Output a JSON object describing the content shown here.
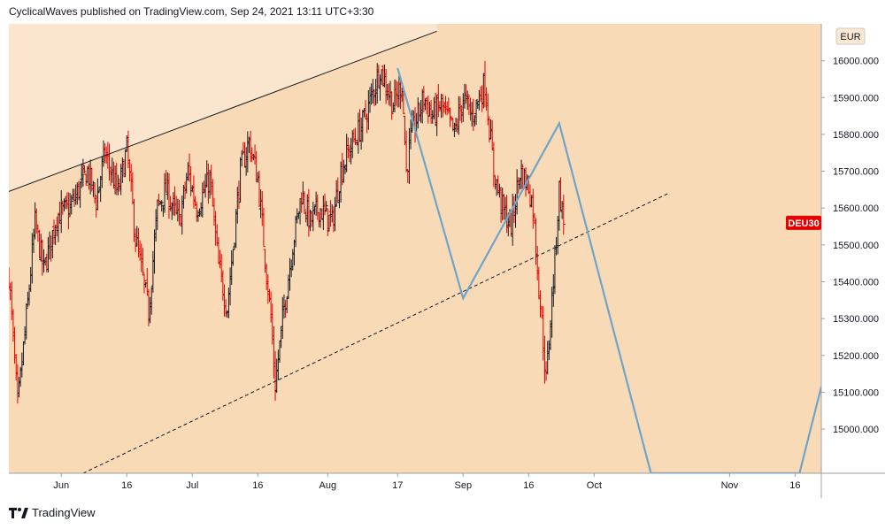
{
  "header": {
    "text": "CyclicalWaves published on TradingView.com, Sep 24, 2021 13:11 UTC+3:30"
  },
  "footer": {
    "brand": "TradingView"
  },
  "colors": {
    "bg": "#f9dab6",
    "channel_top_fill": "#fbe5cf",
    "up": "#131722",
    "down": "#e10000",
    "projection": "#6fa4cb",
    "badge": "#e80000"
  },
  "chart_data": {
    "type": "candlestick",
    "symbol": "DEU30",
    "currency": "EUR",
    "last_price_label": "DEU30",
    "ylim": [
      14880,
      16100
    ],
    "y_ticks": [
      15000,
      15100,
      15200,
      15300,
      15400,
      15500,
      15600,
      15700,
      15800,
      15900,
      16000
    ],
    "y_tick_labels": [
      "15000.000",
      "15100.000",
      "15200.000",
      "15300.000",
      "15400.000",
      "15500.000",
      "15600.000",
      "15700.000",
      "15800.000",
      "15900.000",
      "16000.000"
    ],
    "xlim": [
      "2021-05-20",
      "2021-11-22"
    ],
    "x_ticks": [
      {
        "date": "2021-06-01",
        "label": "Jun"
      },
      {
        "date": "2021-06-16",
        "label": "16"
      },
      {
        "date": "2021-07-01",
        "label": "Jul"
      },
      {
        "date": "2021-07-16",
        "label": "16"
      },
      {
        "date": "2021-08-01",
        "label": "Aug"
      },
      {
        "date": "2021-08-17",
        "label": "17"
      },
      {
        "date": "2021-09-01",
        "label": "Sep"
      },
      {
        "date": "2021-09-16",
        "label": "16"
      },
      {
        "date": "2021-10-01",
        "label": "Oct"
      },
      {
        "date": "2021-11-01",
        "label": "Nov"
      },
      {
        "date": "2021-11-16",
        "label": "16"
      }
    ],
    "anchors": [
      [
        "2021-05-20",
        15420
      ],
      [
        "2021-05-22",
        15060
      ],
      [
        "2021-05-24",
        15300
      ],
      [
        "2021-05-26",
        15560
      ],
      [
        "2021-05-28",
        15430
      ],
      [
        "2021-05-31",
        15580
      ],
      [
        "2021-06-03",
        15600
      ],
      [
        "2021-06-07",
        15700
      ],
      [
        "2021-06-09",
        15620
      ],
      [
        "2021-06-11",
        15750
      ],
      [
        "2021-06-14",
        15640
      ],
      [
        "2021-06-16",
        15760
      ],
      [
        "2021-06-18",
        15520
      ],
      [
        "2021-06-21",
        15320
      ],
      [
        "2021-06-23",
        15600
      ],
      [
        "2021-06-25",
        15650
      ],
      [
        "2021-06-28",
        15560
      ],
      [
        "2021-06-30",
        15700
      ],
      [
        "2021-07-02",
        15600
      ],
      [
        "2021-07-05",
        15680
      ],
      [
        "2021-07-07",
        15440
      ],
      [
        "2021-07-09",
        15330
      ],
      [
        "2021-07-12",
        15700
      ],
      [
        "2021-07-14",
        15780
      ],
      [
        "2021-07-16",
        15680
      ],
      [
        "2021-07-19",
        15300
      ],
      [
        "2021-07-20",
        15120
      ],
      [
        "2021-07-22",
        15330
      ],
      [
        "2021-07-24",
        15500
      ],
      [
        "2021-07-26",
        15640
      ],
      [
        "2021-07-28",
        15560
      ],
      [
        "2021-07-30",
        15600
      ],
      [
        "2021-08-02",
        15560
      ],
      [
        "2021-08-04",
        15700
      ],
      [
        "2021-08-06",
        15760
      ],
      [
        "2021-08-09",
        15830
      ],
      [
        "2021-08-11",
        15900
      ],
      [
        "2021-08-13",
        15980
      ],
      [
        "2021-08-16",
        15880
      ],
      [
        "2021-08-18",
        15940
      ],
      [
        "2021-08-19",
        15700
      ],
      [
        "2021-08-20",
        15790
      ],
      [
        "2021-08-23",
        15900
      ],
      [
        "2021-08-25",
        15850
      ],
      [
        "2021-08-27",
        15880
      ],
      [
        "2021-08-30",
        15800
      ],
      [
        "2021-09-01",
        15900
      ],
      [
        "2021-09-03",
        15850
      ],
      [
        "2021-09-06",
        15940
      ],
      [
        "2021-09-08",
        15700
      ],
      [
        "2021-09-10",
        15600
      ],
      [
        "2021-09-12",
        15550
      ],
      [
        "2021-09-14",
        15700
      ],
      [
        "2021-09-16",
        15660
      ],
      [
        "2021-09-17",
        15600
      ],
      [
        "2021-09-20",
        15130
      ],
      [
        "2021-09-21",
        15300
      ],
      [
        "2021-09-22",
        15460
      ],
      [
        "2021-09-23",
        15650
      ],
      [
        "2021-09-24",
        15560
      ]
    ],
    "channel_upper": {
      "from": [
        "2021-05-20",
        15645
      ],
      "to": [
        "2021-08-26",
        16080
      ],
      "color": "#131722",
      "style": "solid"
    },
    "channel_lower": {
      "from": [
        "2021-06-06",
        14880
      ],
      "to": [
        "2021-10-18",
        15640
      ],
      "color": "#131722",
      "style": "dashed"
    },
    "projection_path": [
      [
        "2021-08-17",
        15980
      ],
      [
        "2021-09-01",
        15355
      ],
      [
        "2021-09-23",
        15830
      ],
      [
        "2021-10-14",
        14880
      ],
      [
        "2021-11-17",
        14880
      ],
      [
        "2021-11-22",
        15115
      ]
    ]
  }
}
